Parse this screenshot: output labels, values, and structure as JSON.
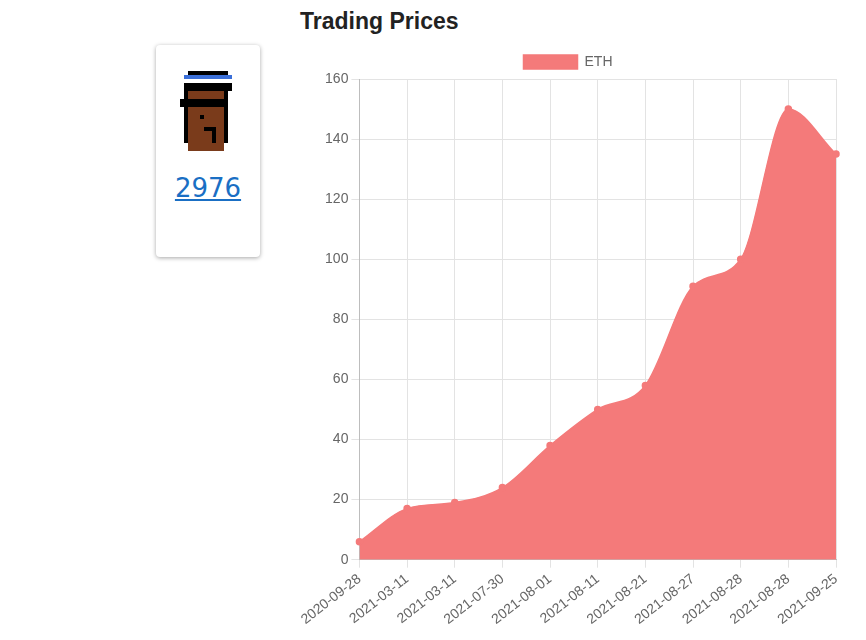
{
  "card": {
    "link": "2976"
  },
  "chart_data": {
    "type": "area",
    "title": "Trading Prices",
    "categories": [
      "2020-09-28",
      "2021-03-11",
      "2021-03-11",
      "2021-07-30",
      "2021-08-01",
      "2021-08-11",
      "2021-08-21",
      "2021-08-27",
      "2021-08-28",
      "2021-08-28",
      "2021-09-25"
    ],
    "series": [
      {
        "name": "ETH",
        "color": "#f47a7a",
        "values": [
          6,
          17,
          19,
          24,
          38,
          50,
          58,
          91,
          100,
          150,
          135
        ]
      }
    ],
    "ylim": [
      0,
      160
    ],
    "yticks": [
      0,
      20,
      40,
      60,
      80,
      100,
      120,
      140,
      160
    ],
    "grid": true,
    "legend": "top"
  }
}
